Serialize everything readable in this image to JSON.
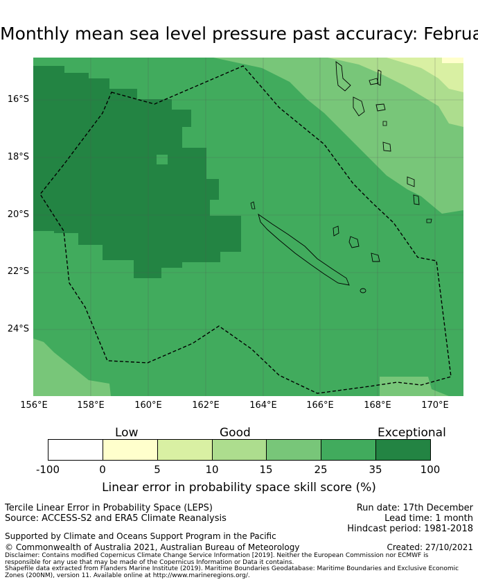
{
  "title": "Monthly mean sea level pressure past accuracy: February",
  "map": {
    "lat_labels": [
      "16°S",
      "18°S",
      "20°S",
      "22°S",
      "24°S"
    ],
    "lon_labels": [
      "156°E",
      "158°E",
      "160°E",
      "162°E",
      "164°E",
      "166°E",
      "168°E",
      "170°E"
    ],
    "region": "New Caledonia EEZ"
  },
  "legend": {
    "levels": [
      "Low",
      "Good",
      "Exceptional"
    ],
    "ticks": [
      "-100",
      "0",
      "5",
      "10",
      "15",
      "25",
      "35",
      "100"
    ],
    "colors": [
      "#ffffff",
      "#ffffcc",
      "#d9f0a3",
      "#addd8e",
      "#78c679",
      "#41ab5d",
      "#238443"
    ],
    "label": "Linear error in probability space skill score (%)"
  },
  "info": {
    "method": "Tercile Linear Error in Probability Space (LEPS)",
    "source": "Source: ACCESS-S2 and ERA5 Climate Reanalysis",
    "run_date": "Run date: 17th December",
    "lead_time": "Lead time: 1 month",
    "hindcast": "Hindcast period: 1981-2018",
    "support": "Supported by Climate and Oceans Support Program in the Pacific",
    "copyright": "© Commonwealth of Australia 2021, Australian Bureau of Meteorology",
    "created": "Created: 27/10/2021",
    "disclaimer1": "Disclaimer: Contains modified Copernicus Climate Change Service Information [2019]. Neither the European Commission nor ECMWF is",
    "disclaimer2": "responsible for any use that may be made of the Copernicus Information or Data it contains.",
    "shapefile1": "Shapefile data extracted from Flanders Marine Institute (2019). Maritime Boundaries Geodatabase: Maritime Boundaries and Exclusive Economic",
    "shapefile2": "Zones (200NM), version 11. Available online at http://www.marineregions.org/."
  }
}
